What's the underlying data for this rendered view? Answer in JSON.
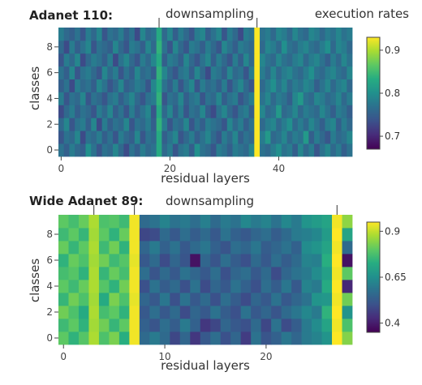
{
  "chart_data": [
    {
      "type": "heatmap",
      "title": "Adanet 110:",
      "annotations": [
        "downsampling",
        "execution rates"
      ],
      "xlabel": "residual layers",
      "ylabel": "classes",
      "n_cols": 54,
      "n_rows": 10,
      "x_ticks": [
        0,
        20,
        40
      ],
      "y_ticks": [
        0,
        2,
        4,
        6,
        8
      ],
      "downsampling_layers": [
        18,
        36
      ],
      "colorscale": "viridis",
      "zmin": 0.67,
      "zmax": 0.93,
      "colorbar_ticks": [
        0.9,
        0.8,
        0.7
      ],
      "values": [
        [
          0.77,
          0.75,
          0.78,
          0.76,
          0.75,
          0.8,
          0.77,
          0.74,
          0.77,
          0.76,
          0.79,
          0.76,
          0.73,
          0.77,
          0.75,
          0.78,
          0.76,
          0.77,
          0.83,
          0.76,
          0.78,
          0.74,
          0.77,
          0.78,
          0.75,
          0.8,
          0.77,
          0.76,
          0.74,
          0.78,
          0.77,
          0.75,
          0.78,
          0.77,
          0.76,
          0.79,
          0.93,
          0.77,
          0.76,
          0.78,
          0.8,
          0.77,
          0.78,
          0.75,
          0.79,
          0.76,
          0.78,
          0.74,
          0.77,
          0.79,
          0.76,
          0.78,
          0.75,
          0.77
        ],
        [
          0.74,
          0.77,
          0.76,
          0.79,
          0.73,
          0.77,
          0.76,
          0.78,
          0.75,
          0.77,
          0.74,
          0.78,
          0.76,
          0.75,
          0.79,
          0.74,
          0.77,
          0.76,
          0.83,
          0.75,
          0.77,
          0.79,
          0.74,
          0.76,
          0.78,
          0.75,
          0.77,
          0.79,
          0.76,
          0.74,
          0.78,
          0.76,
          0.79,
          0.75,
          0.77,
          0.76,
          0.93,
          0.78,
          0.81,
          0.76,
          0.77,
          0.79,
          0.76,
          0.78,
          0.77,
          0.81,
          0.75,
          0.78,
          0.76,
          0.74,
          0.78,
          0.76,
          0.77,
          0.79
        ],
        [
          0.76,
          0.79,
          0.74,
          0.77,
          0.78,
          0.75,
          0.79,
          0.73,
          0.78,
          0.75,
          0.77,
          0.76,
          0.79,
          0.74,
          0.77,
          0.76,
          0.78,
          0.75,
          0.84,
          0.78,
          0.74,
          0.77,
          0.76,
          0.79,
          0.74,
          0.77,
          0.75,
          0.78,
          0.77,
          0.76,
          0.74,
          0.79,
          0.76,
          0.78,
          0.75,
          0.77,
          0.93,
          0.76,
          0.78,
          0.79,
          0.76,
          0.78,
          0.8,
          0.76,
          0.78,
          0.76,
          0.79,
          0.77,
          0.75,
          0.78,
          0.79,
          0.75,
          0.78,
          0.76
        ],
        [
          0.73,
          0.76,
          0.78,
          0.75,
          0.77,
          0.76,
          0.74,
          0.78,
          0.76,
          0.79,
          0.75,
          0.77,
          0.74,
          0.78,
          0.75,
          0.77,
          0.79,
          0.74,
          0.83,
          0.76,
          0.79,
          0.75,
          0.78,
          0.74,
          0.77,
          0.76,
          0.79,
          0.75,
          0.73,
          0.77,
          0.79,
          0.76,
          0.74,
          0.77,
          0.78,
          0.75,
          0.93,
          0.79,
          0.76,
          0.77,
          0.81,
          0.76,
          0.77,
          0.79,
          0.76,
          0.78,
          0.77,
          0.76,
          0.79,
          0.77,
          0.75,
          0.78,
          0.77,
          0.75
        ],
        [
          0.78,
          0.74,
          0.77,
          0.76,
          0.79,
          0.74,
          0.77,
          0.76,
          0.74,
          0.77,
          0.78,
          0.75,
          0.77,
          0.79,
          0.76,
          0.74,
          0.77,
          0.78,
          0.84,
          0.74,
          0.77,
          0.76,
          0.79,
          0.75,
          0.77,
          0.78,
          0.74,
          0.77,
          0.76,
          0.79,
          0.75,
          0.77,
          0.78,
          0.74,
          0.76,
          0.78,
          0.93,
          0.77,
          0.79,
          0.76,
          0.78,
          0.77,
          0.75,
          0.79,
          0.81,
          0.77,
          0.76,
          0.79,
          0.78,
          0.76,
          0.77,
          0.79,
          0.76,
          0.78
        ],
        [
          0.75,
          0.77,
          0.73,
          0.78,
          0.76,
          0.77,
          0.75,
          0.79,
          0.77,
          0.74,
          0.76,
          0.79,
          0.75,
          0.76,
          0.78,
          0.77,
          0.74,
          0.79,
          0.83,
          0.77,
          0.75,
          0.78,
          0.74,
          0.77,
          0.79,
          0.74,
          0.78,
          0.76,
          0.77,
          0.75,
          0.78,
          0.74,
          0.77,
          0.79,
          0.76,
          0.74,
          0.93,
          0.76,
          0.78,
          0.8,
          0.77,
          0.79,
          0.76,
          0.78,
          0.77,
          0.79,
          0.78,
          0.75,
          0.77,
          0.79,
          0.76,
          0.78,
          0.79,
          0.76
        ],
        [
          0.77,
          0.75,
          0.79,
          0.74,
          0.77,
          0.78,
          0.76,
          0.74,
          0.79,
          0.76,
          0.78,
          0.74,
          0.77,
          0.75,
          0.79,
          0.76,
          0.77,
          0.75,
          0.84,
          0.79,
          0.76,
          0.74,
          0.77,
          0.78,
          0.75,
          0.79,
          0.76,
          0.73,
          0.78,
          0.77,
          0.75,
          0.79,
          0.76,
          0.77,
          0.74,
          0.78,
          0.93,
          0.78,
          0.76,
          0.79,
          0.76,
          0.78,
          0.79,
          0.77,
          0.76,
          0.78,
          0.8,
          0.77,
          0.76,
          0.78,
          0.79,
          0.77,
          0.76,
          0.79
        ],
        [
          0.74,
          0.78,
          0.76,
          0.79,
          0.73,
          0.76,
          0.78,
          0.77,
          0.75,
          0.78,
          0.73,
          0.77,
          0.79,
          0.76,
          0.74,
          0.78,
          0.76,
          0.79,
          0.83,
          0.75,
          0.78,
          0.77,
          0.75,
          0.79,
          0.76,
          0.74,
          0.77,
          0.79,
          0.75,
          0.78,
          0.76,
          0.74,
          0.78,
          0.75,
          0.79,
          0.76,
          0.93,
          0.79,
          0.77,
          0.76,
          0.79,
          0.77,
          0.76,
          0.78,
          0.79,
          0.76,
          0.78,
          0.79,
          0.77,
          0.75,
          0.78,
          0.76,
          0.79,
          0.77
        ],
        [
          0.76,
          0.73,
          0.78,
          0.75,
          0.77,
          0.79,
          0.74,
          0.77,
          0.76,
          0.75,
          0.79,
          0.76,
          0.74,
          0.78,
          0.77,
          0.75,
          0.79,
          0.76,
          0.84,
          0.77,
          0.74,
          0.79,
          0.76,
          0.74,
          0.78,
          0.77,
          0.75,
          0.78,
          0.76,
          0.74,
          0.79,
          0.77,
          0.75,
          0.78,
          0.77,
          0.76,
          0.93,
          0.76,
          0.79,
          0.78,
          0.76,
          0.8,
          0.77,
          0.76,
          0.78,
          0.79,
          0.77,
          0.76,
          0.78,
          0.8,
          0.76,
          0.79,
          0.78,
          0.76
        ],
        [
          0.78,
          0.76,
          0.75,
          0.77,
          0.74,
          0.78,
          0.76,
          0.79,
          0.74,
          0.77,
          0.76,
          0.78,
          0.75,
          0.77,
          0.73,
          0.79,
          0.76,
          0.77,
          0.83,
          0.76,
          0.79,
          0.75,
          0.78,
          0.76,
          0.74,
          0.78,
          0.79,
          0.75,
          0.77,
          0.79,
          0.74,
          0.78,
          0.76,
          0.73,
          0.78,
          0.77,
          0.93,
          0.77,
          0.78,
          0.76,
          0.79,
          0.78,
          0.76,
          0.79,
          0.77,
          0.76,
          0.79,
          0.78,
          0.76,
          0.78,
          0.77,
          0.79,
          0.77,
          0.78
        ]
      ]
    },
    {
      "type": "heatmap",
      "title": "Wide Adanet 89:",
      "annotations": [
        "downsampling"
      ],
      "xlabel": "residual layers",
      "ylabel": "classes",
      "n_cols": 29,
      "n_rows": 10,
      "x_ticks": [
        0,
        10,
        20
      ],
      "y_ticks": [
        0,
        2,
        4,
        6,
        8
      ],
      "downsampling_layers": [
        3,
        7,
        27
      ],
      "colorscale": "viridis",
      "zmin": 0.35,
      "zmax": 0.95,
      "colorbar_ticks": [
        0.9,
        0.65,
        0.4
      ],
      "values": [
        [
          0.8,
          0.74,
          0.79,
          0.88,
          0.78,
          0.83,
          0.73,
          0.94,
          0.56,
          0.6,
          0.56,
          0.48,
          0.55,
          0.45,
          0.52,
          0.57,
          0.5,
          0.55,
          0.46,
          0.58,
          0.51,
          0.54,
          0.59,
          0.55,
          0.6,
          0.62,
          0.66,
          0.95,
          0.84
        ],
        [
          0.76,
          0.8,
          0.74,
          0.87,
          0.82,
          0.75,
          0.8,
          0.94,
          0.54,
          0.51,
          0.57,
          0.53,
          0.6,
          0.54,
          0.45,
          0.48,
          0.55,
          0.52,
          0.5,
          0.56,
          0.48,
          0.58,
          0.49,
          0.53,
          0.6,
          0.64,
          0.7,
          0.94,
          0.78
        ],
        [
          0.82,
          0.78,
          0.72,
          0.88,
          0.77,
          0.8,
          0.74,
          0.94,
          0.52,
          0.57,
          0.52,
          0.56,
          0.49,
          0.55,
          0.52,
          0.58,
          0.53,
          0.5,
          0.58,
          0.52,
          0.55,
          0.51,
          0.56,
          0.59,
          0.63,
          0.6,
          0.74,
          0.95,
          0.66
        ],
        [
          0.75,
          0.82,
          0.78,
          0.87,
          0.72,
          0.83,
          0.78,
          0.93,
          0.55,
          0.52,
          0.59,
          0.5,
          0.58,
          0.52,
          0.56,
          0.5,
          0.57,
          0.53,
          0.49,
          0.55,
          0.52,
          0.58,
          0.52,
          0.55,
          0.58,
          0.66,
          0.67,
          0.94,
          0.82
        ],
        [
          0.8,
          0.76,
          0.81,
          0.88,
          0.79,
          0.74,
          0.82,
          0.94,
          0.5,
          0.58,
          0.53,
          0.56,
          0.5,
          0.58,
          0.49,
          0.55,
          0.52,
          0.58,
          0.54,
          0.5,
          0.57,
          0.53,
          0.59,
          0.52,
          0.62,
          0.6,
          0.72,
          0.95,
          0.42
        ],
        [
          0.77,
          0.79,
          0.74,
          0.88,
          0.75,
          0.81,
          0.77,
          0.94,
          0.57,
          0.51,
          0.56,
          0.52,
          0.58,
          0.55,
          0.52,
          0.57,
          0.5,
          0.55,
          0.57,
          0.52,
          0.56,
          0.49,
          0.55,
          0.58,
          0.6,
          0.64,
          0.69,
          0.94,
          0.8
        ],
        [
          0.74,
          0.81,
          0.78,
          0.87,
          0.82,
          0.76,
          0.79,
          0.93,
          0.52,
          0.56,
          0.49,
          0.55,
          0.51,
          0.38,
          0.55,
          0.51,
          0.57,
          0.53,
          0.5,
          0.56,
          0.52,
          0.57,
          0.53,
          0.56,
          0.62,
          0.61,
          0.73,
          0.95,
          0.38
        ],
        [
          0.81,
          0.75,
          0.8,
          0.88,
          0.76,
          0.82,
          0.74,
          0.94,
          0.55,
          0.6,
          0.54,
          0.58,
          0.52,
          0.56,
          0.59,
          0.54,
          0.51,
          0.57,
          0.55,
          0.59,
          0.53,
          0.55,
          0.58,
          0.54,
          0.64,
          0.66,
          0.7,
          0.94,
          0.56
        ],
        [
          0.76,
          0.8,
          0.75,
          0.87,
          0.8,
          0.74,
          0.81,
          0.94,
          0.48,
          0.49,
          0.56,
          0.52,
          0.57,
          0.53,
          0.56,
          0.52,
          0.58,
          0.54,
          0.52,
          0.55,
          0.57,
          0.53,
          0.56,
          0.6,
          0.61,
          0.63,
          0.68,
          0.95,
          0.7
        ],
        [
          0.8,
          0.77,
          0.81,
          0.88,
          0.78,
          0.79,
          0.76,
          0.94,
          0.56,
          0.58,
          0.62,
          0.58,
          0.6,
          0.57,
          0.61,
          0.56,
          0.6,
          0.58,
          0.63,
          0.6,
          0.62,
          0.58,
          0.63,
          0.6,
          0.66,
          0.68,
          0.7,
          0.94,
          0.85
        ]
      ]
    }
  ]
}
